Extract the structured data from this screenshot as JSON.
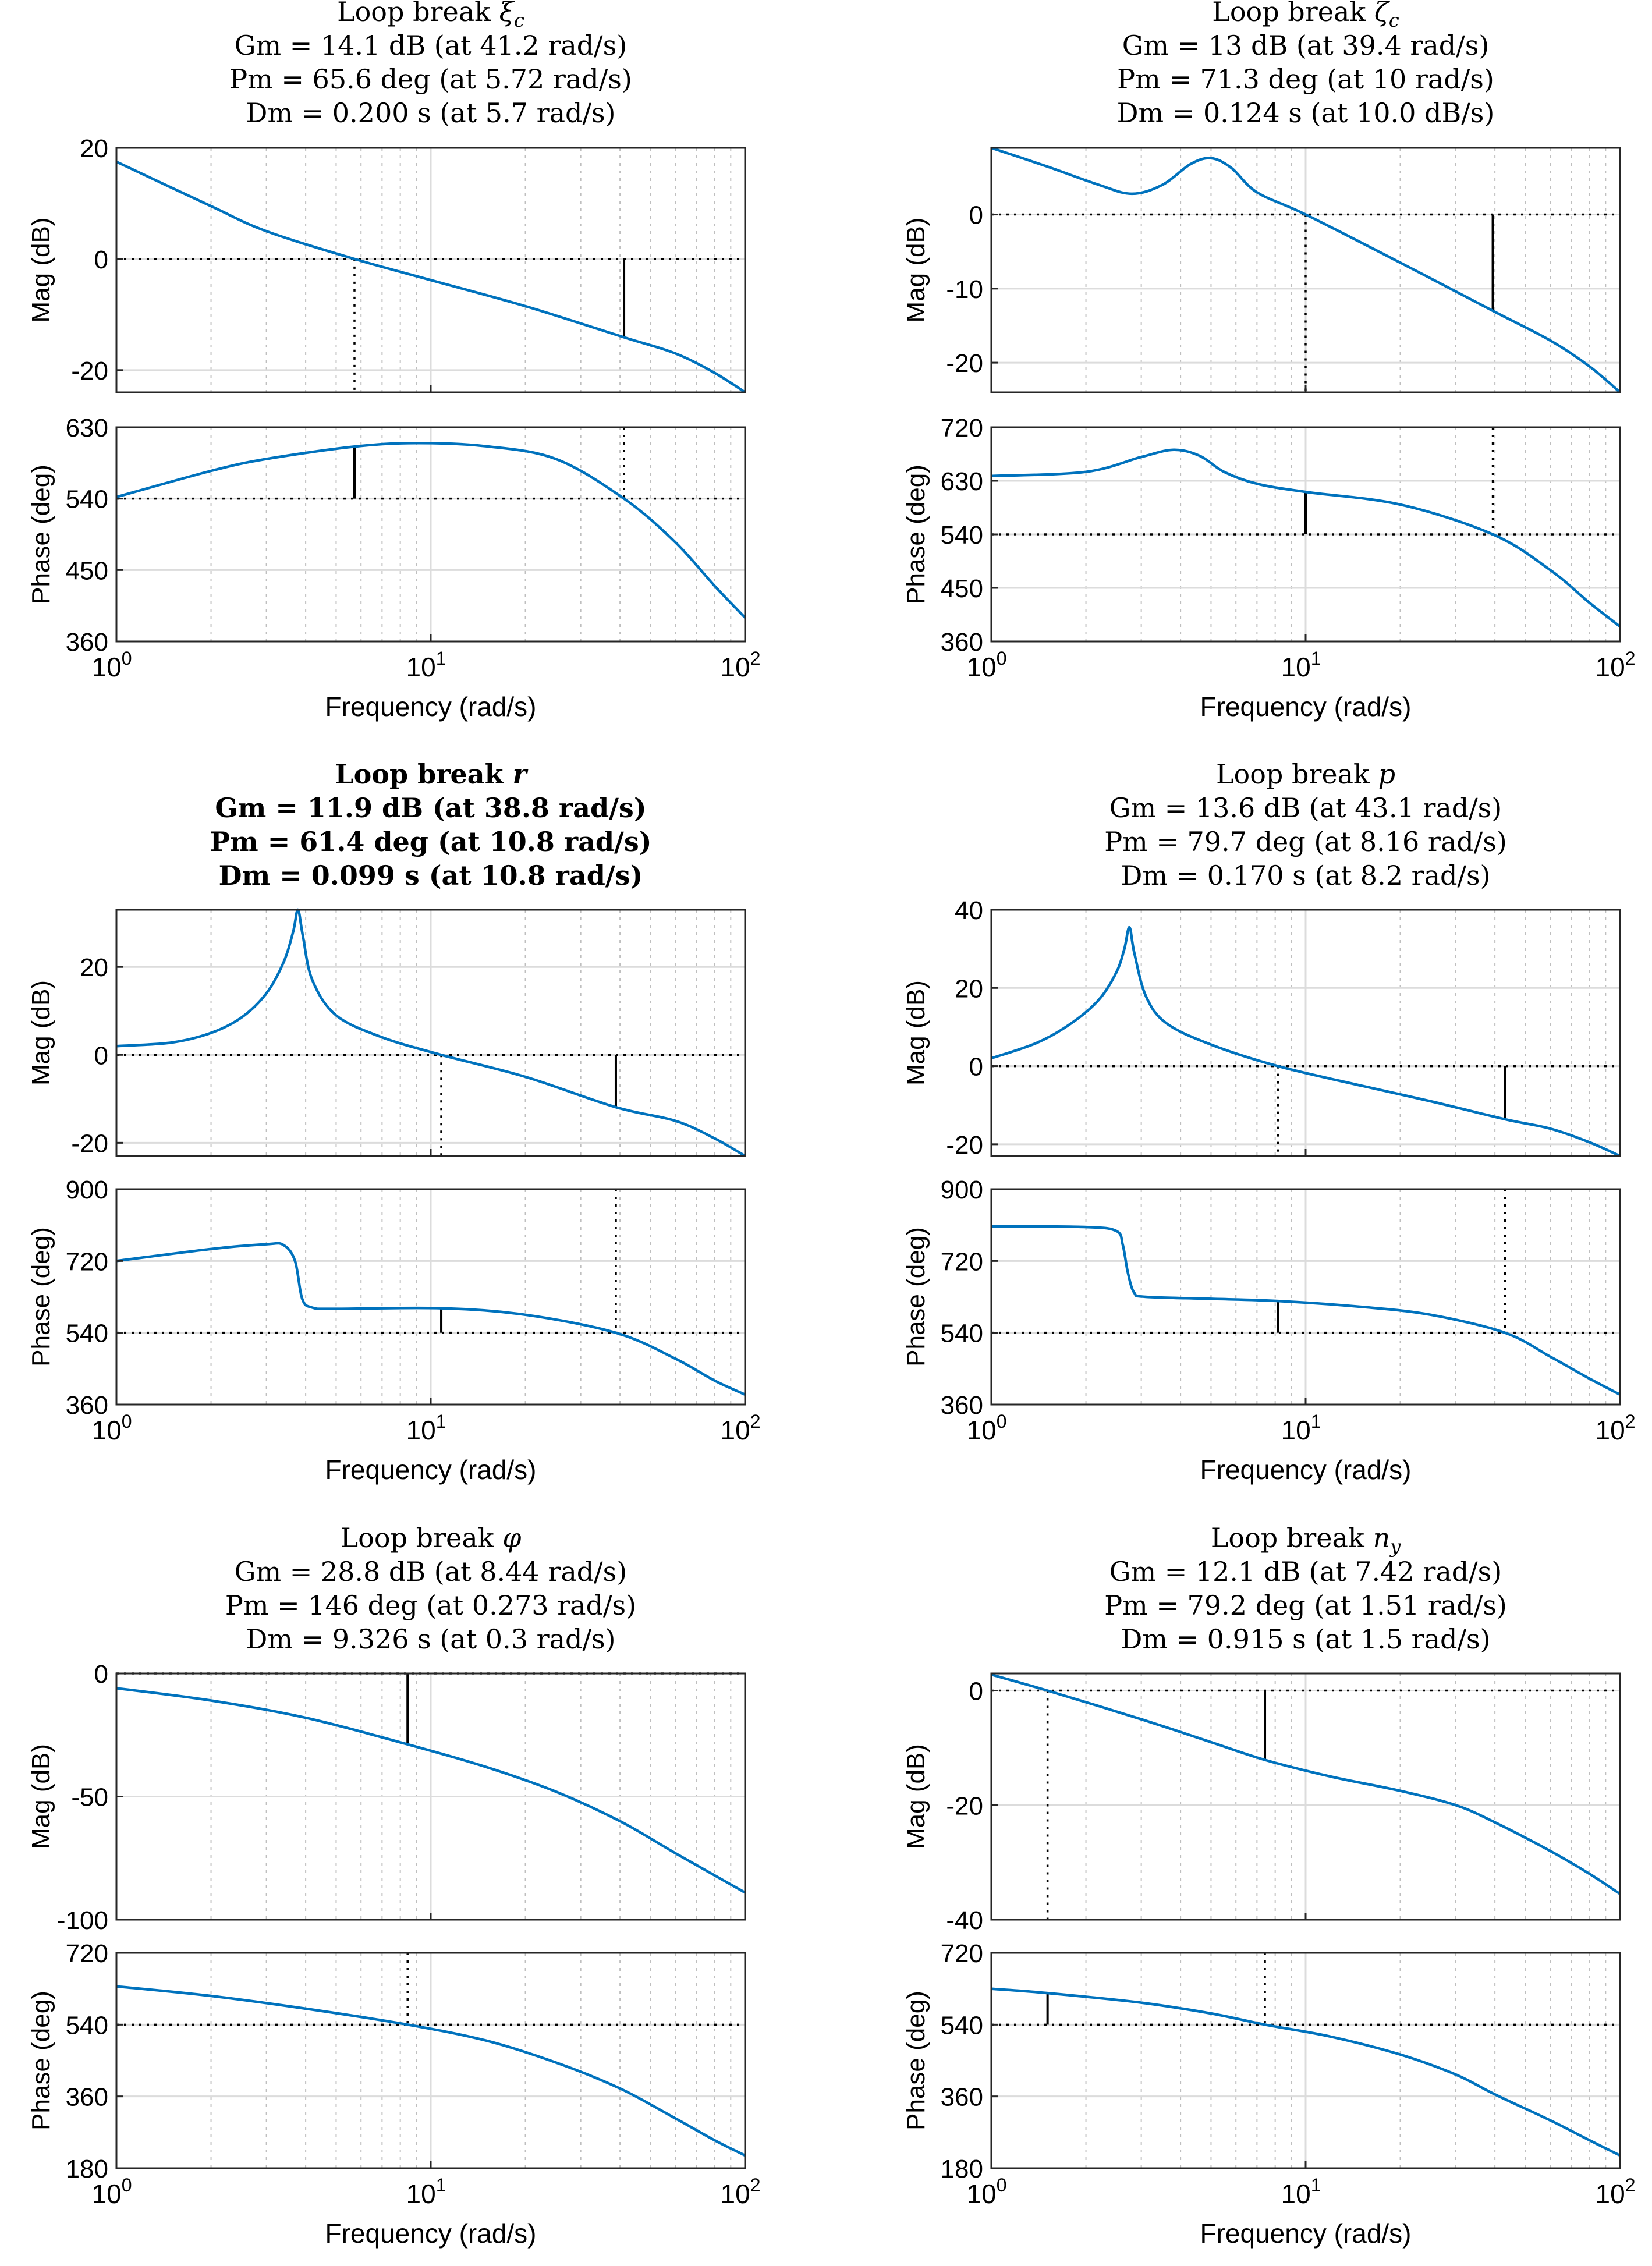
{
  "figure": {
    "line_color": "#0072BD",
    "grid_color": "#dcdcdc",
    "xlabel": "Frequency  (rad/s)",
    "mag_ylabel": "Mag (dB)",
    "phase_ylabel": "Phase (deg)",
    "x_ticks": [
      {
        "base": "10",
        "exp": "0"
      },
      {
        "base": "10",
        "exp": "1"
      },
      {
        "base": "10",
        "exp": "2"
      }
    ]
  },
  "chart_data": [
    {
      "type": "line",
      "title": "Loop break",
      "symbol": "ξ",
      "subscript": "c",
      "bold": false,
      "gm_text": "Gm = 14.1 dB (at 41.2 rad/s)",
      "pm_text": "Pm = 65.6 deg (at 5.72 rad/s)",
      "dm_text": "Dm = 0.200 s   (at 5.7 rad/s)",
      "xlim": [
        1,
        100
      ],
      "mag": {
        "ylim": [
          -24,
          20
        ],
        "ticks": [
          -20,
          0,
          20
        ],
        "tick_labels": [
          "-20",
          "0",
          "20"
        ],
        "ref": 0,
        "x": [
          1,
          2,
          3,
          5.72,
          10,
          20,
          41.2,
          60,
          80,
          100
        ],
        "y": [
          17.5,
          9.5,
          5,
          0,
          -3.8,
          -8.5,
          -14.1,
          -17,
          -20.5,
          -24
        ]
      },
      "phase": {
        "ylim": [
          360,
          630
        ],
        "ticks": [
          360,
          450,
          540,
          630
        ],
        "tick_labels": [
          "360",
          "450",
          "540",
          "630"
        ],
        "ref": 540,
        "x": [
          1,
          2,
          3,
          5.72,
          9,
          15,
          25,
          41.2,
          60,
          80,
          100
        ],
        "y": [
          542,
          575,
          590,
          605.6,
          610,
          606,
          590,
          540,
          485,
          430,
          390
        ]
      },
      "gm_freq": 41.2,
      "pm_freq": 5.72
    },
    {
      "type": "line",
      "title": "Loop break",
      "symbol": "ζ",
      "subscript": "c",
      "bold": false,
      "gm_text": "Gm = 13 dB (at 39.4 rad/s)",
      "pm_text": "Pm = 71.3 deg (at 10 rad/s)",
      "dm_text": "Dm = 0.124 s   (at 10.0 dB/s)",
      "xlim": [
        1,
        100
      ],
      "mag": {
        "ylim": [
          -24,
          9
        ],
        "ticks": [
          -20,
          -10,
          0
        ],
        "tick_labels": [
          "-20",
          "-10",
          "0"
        ],
        "ref": 0,
        "x": [
          1,
          1.5,
          2.2,
          2.8,
          3.5,
          4.3,
          5,
          5.8,
          7,
          10,
          20,
          39.4,
          60,
          80,
          100
        ],
        "y": [
          9,
          6.5,
          4,
          2.8,
          4,
          6.8,
          7.6,
          6.3,
          3,
          0,
          -6.5,
          -13,
          -17,
          -20.5,
          -24
        ]
      },
      "phase": {
        "ylim": [
          360,
          720
        ],
        "ticks": [
          360,
          450,
          540,
          630,
          720
        ],
        "tick_labels": [
          "360",
          "450",
          "540",
          "630",
          "720"
        ],
        "ref": 540,
        "x": [
          1,
          2,
          3,
          3.8,
          4.6,
          5.5,
          7,
          10,
          20,
          39.4,
          60,
          80,
          100
        ],
        "y": [
          638,
          645,
          670,
          682,
          672,
          645,
          625,
          611.3,
          590,
          540,
          480,
          425,
          385
        ]
      },
      "gm_freq": 39.4,
      "pm_freq": 10
    },
    {
      "type": "line",
      "title": "Loop break",
      "symbol": "r",
      "subscript": "",
      "bold": true,
      "gm_text": "Gm = 11.9 dB (at 38.8 rad/s)",
      "pm_text": "Pm = 61.4 deg (at 10.8 rad/s)",
      "dm_text": "Dm = 0.099 s   (at 10.8 rad/s)",
      "xlim": [
        1,
        100
      ],
      "mag": {
        "ylim": [
          -23,
          33
        ],
        "ticks": [
          -20,
          0,
          20
        ],
        "tick_labels": [
          "-20",
          "0",
          "20"
        ],
        "ref": 0,
        "x": [
          1,
          1.5,
          2,
          2.5,
          3,
          3.4,
          3.65,
          3.78,
          3.92,
          4.2,
          5,
          7,
          10.8,
          20,
          38.8,
          60,
          80,
          100
        ],
        "y": [
          2,
          2.8,
          5,
          8.5,
          14,
          21,
          28,
          33,
          27,
          17,
          9,
          4,
          0,
          -5,
          -11.9,
          -15,
          -19,
          -23
        ]
      },
      "phase": {
        "ylim": [
          360,
          900
        ],
        "ticks": [
          360,
          540,
          720,
          900
        ],
        "tick_labels": [
          "360",
          "540",
          "720",
          "900"
        ],
        "ref": 540,
        "x": [
          1,
          2,
          3,
          3.4,
          3.7,
          3.9,
          4.2,
          5,
          10.8,
          20,
          38.8,
          60,
          80,
          100
        ],
        "y": [
          720,
          750,
          762,
          760,
          720,
          625,
          603,
          600,
          601.4,
          585,
          540,
          475,
          420,
          385
        ]
      },
      "gm_freq": 38.8,
      "pm_freq": 10.8
    },
    {
      "type": "line",
      "title": "Loop break",
      "symbol": "p",
      "subscript": "",
      "bold": false,
      "gm_text": "Gm = 13.6 dB (at 43.1 rad/s)",
      "pm_text": "Pm = 79.7 deg (at 8.16 rad/s)",
      "dm_text": "Dm = 0.170 s   (at 8.2 rad/s)",
      "xlim": [
        1,
        100
      ],
      "mag": {
        "ylim": [
          -23,
          40
        ],
        "ticks": [
          -20,
          0,
          20,
          40
        ],
        "tick_labels": [
          "-20",
          "0",
          "20",
          "40"
        ],
        "ref": 0,
        "x": [
          1,
          1.4,
          1.8,
          2.2,
          2.5,
          2.65,
          2.75,
          2.85,
          3.1,
          3.6,
          5,
          8.16,
          15,
          25,
          43.1,
          60,
          80,
          100
        ],
        "y": [
          2,
          6,
          11,
          17,
          24,
          30,
          35.5,
          29,
          18,
          11,
          5.5,
          0,
          -5,
          -9,
          -13.6,
          -16,
          -19.5,
          -23
        ]
      },
      "phase": {
        "ylim": [
          360,
          900
        ],
        "ticks": [
          360,
          540,
          720,
          900
        ],
        "tick_labels": [
          "360",
          "540",
          "720",
          "900"
        ],
        "ref": 540,
        "x": [
          1,
          2,
          2.5,
          2.62,
          2.72,
          2.85,
          3.1,
          5,
          8.16,
          15,
          25,
          43.1,
          60,
          80,
          100
        ],
        "y": [
          807,
          805,
          795,
          760,
          690,
          640,
          630,
          625,
          619.7,
          605,
          585,
          540,
          480,
          425,
          385
        ]
      },
      "gm_freq": 43.1,
      "pm_freq": 8.16
    },
    {
      "type": "line",
      "title": "Loop break",
      "symbol": "φ",
      "subscript": "",
      "bold": false,
      "gm_text": "Gm = 28.8 dB (at 8.44 rad/s)",
      "pm_text": "Pm = 146 deg (at 0.273 rad/s)",
      "dm_text": "Dm = 9.326 s   (at 0.3 rad/s)",
      "xlim": [
        1,
        100
      ],
      "mag": {
        "ylim": [
          -100,
          0
        ],
        "ticks": [
          -100,
          -50,
          0
        ],
        "tick_labels": [
          "-100",
          "-50",
          "0"
        ],
        "ref": 0,
        "x": [
          1,
          2,
          4,
          8.44,
          15,
          25,
          40,
          60,
          80,
          100
        ],
        "y": [
          -6,
          -11,
          -18,
          -28.8,
          -38,
          -48,
          -60,
          -73,
          -82,
          -89
        ]
      },
      "phase": {
        "ylim": [
          180,
          720
        ],
        "ticks": [
          180,
          360,
          540,
          720
        ],
        "tick_labels": [
          "180",
          "360",
          "540",
          "720"
        ],
        "ref": 540,
        "x": [
          1,
          2,
          4,
          8.44,
          15,
          25,
          40,
          60,
          80,
          100
        ],
        "y": [
          636,
          612,
          580,
          540,
          500,
          445,
          380,
          305,
          250,
          212
        ]
      },
      "gm_freq": 8.44,
      "pm_freq": null
    },
    {
      "type": "line",
      "title": "Loop break",
      "symbol": "n",
      "subscript": "y",
      "bold": false,
      "gm_text": "Gm = 12.1 dB (at 7.42 rad/s)",
      "pm_text": "Pm = 79.2 deg (at 1.51 rad/s)",
      "dm_text": "Dm = 0.915 s   (at 1.5 rad/s)",
      "xlim": [
        1,
        100
      ],
      "mag": {
        "ylim": [
          -40,
          3
        ],
        "ticks": [
          -40,
          -20,
          0
        ],
        "tick_labels": [
          "-40",
          "-20",
          "0"
        ],
        "ref": 0,
        "x": [
          1,
          1.51,
          3,
          5,
          7.42,
          12,
          20,
          30,
          40,
          60,
          80,
          100
        ],
        "y": [
          2.8,
          0,
          -5,
          -9,
          -12.1,
          -15,
          -17.5,
          -20,
          -23,
          -28,
          -32,
          -35.5
        ]
      },
      "phase": {
        "ylim": [
          180,
          720
        ],
        "ticks": [
          180,
          360,
          540,
          720
        ],
        "tick_labels": [
          "180",
          "360",
          "540",
          "720"
        ],
        "ref": 540,
        "x": [
          1,
          1.51,
          3,
          5,
          7.42,
          12,
          20,
          30,
          40,
          60,
          80,
          100
        ],
        "y": [
          630,
          619.2,
          595,
          568,
          540,
          510,
          465,
          415,
          365,
          300,
          250,
          212
        ]
      },
      "gm_freq": 7.42,
      "pm_freq": 1.51
    }
  ]
}
